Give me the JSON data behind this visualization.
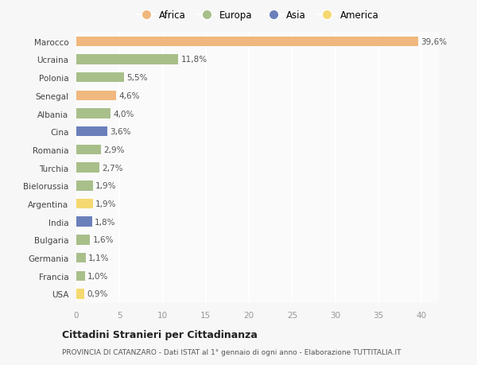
{
  "categories": [
    "Marocco",
    "Ucraina",
    "Polonia",
    "Senegal",
    "Albania",
    "Cina",
    "Romania",
    "Turchia",
    "Bielorussia",
    "Argentina",
    "India",
    "Bulgaria",
    "Germania",
    "Francia",
    "USA"
  ],
  "values": [
    39.6,
    11.8,
    5.5,
    4.6,
    4.0,
    3.6,
    2.9,
    2.7,
    1.9,
    1.9,
    1.8,
    1.6,
    1.1,
    1.0,
    0.9
  ],
  "labels": [
    "39,6%",
    "11,8%",
    "5,5%",
    "4,6%",
    "4,0%",
    "3,6%",
    "2,9%",
    "2,7%",
    "1,9%",
    "1,9%",
    "1,8%",
    "1,6%",
    "1,1%",
    "1,0%",
    "0,9%"
  ],
  "colors": [
    "#f0b87e",
    "#a8bf8a",
    "#a8bf8a",
    "#f0b87e",
    "#a8bf8a",
    "#6b7fba",
    "#a8bf8a",
    "#a8bf8a",
    "#a8bf8a",
    "#f5d870",
    "#6b7fba",
    "#a8bf8a",
    "#a8bf8a",
    "#a8bf8a",
    "#f5d870"
  ],
  "legend_labels": [
    "Africa",
    "Europa",
    "Asia",
    "America"
  ],
  "legend_colors": [
    "#f0b87e",
    "#a8bf8a",
    "#6b7fba",
    "#f5d870"
  ],
  "title": "Cittadini Stranieri per Cittadinanza",
  "subtitle": "PROVINCIA DI CATANZARO - Dati ISTAT al 1° gennaio di ogni anno - Elaborazione TUTTITALIA.IT",
  "xlim": [
    0,
    42
  ],
  "xticks": [
    0,
    5,
    10,
    15,
    20,
    25,
    30,
    35,
    40
  ],
  "bg_color": "#f7f7f7",
  "plot_bg_color": "#fafafa",
  "grid_color": "#ffffff",
  "bar_height": 0.55
}
